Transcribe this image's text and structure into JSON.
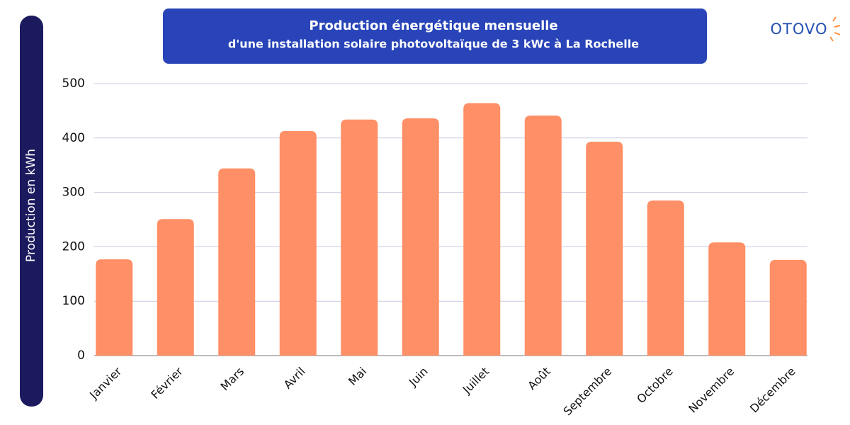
{
  "logo": "OTOVO",
  "chart_data": {
    "type": "bar",
    "title": "Production énergétique mensuelle",
    "subtitle": "d'une installation solaire photovoltaïque de 3 kWc à La Rochelle",
    "y_label": "Production en kWh",
    "categories": [
      "Janvier",
      "Février",
      "Mars",
      "Avril",
      "Mai",
      "Juin",
      "Juillet",
      "Août",
      "Septembre",
      "Octobre",
      "Novembre",
      "Décembre"
    ],
    "values": [
      177,
      251,
      344,
      413,
      434,
      436,
      464,
      441,
      393,
      285,
      208,
      176
    ],
    "color": "#ff8f66",
    "ylim": [
      0,
      500
    ],
    "yticks": [
      0,
      100,
      200,
      300,
      400,
      500
    ],
    "grid": true
  }
}
